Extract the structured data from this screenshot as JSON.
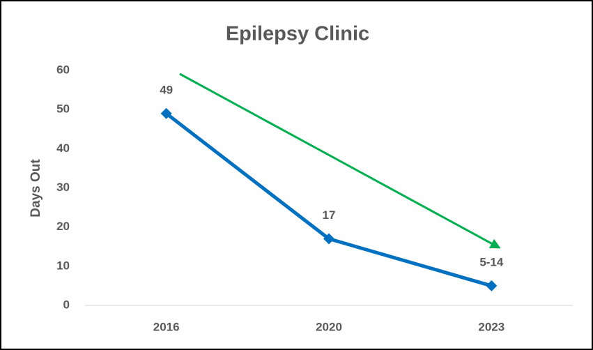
{
  "chart_data": {
    "type": "line",
    "title": "Epilepsy Clinic",
    "y_label": "Days Out",
    "categories": [
      "2016",
      "2020",
      "2023"
    ],
    "series": [
      {
        "name": "Days Out",
        "color": "#0070c0",
        "values": [
          49,
          17,
          5
        ],
        "value_labels": [
          "49",
          "17",
          "5-14"
        ]
      }
    ],
    "ylim": [
      0,
      60
    ],
    "yticks": [
      0,
      10,
      20,
      30,
      40,
      50,
      60
    ],
    "grid": false
  }
}
